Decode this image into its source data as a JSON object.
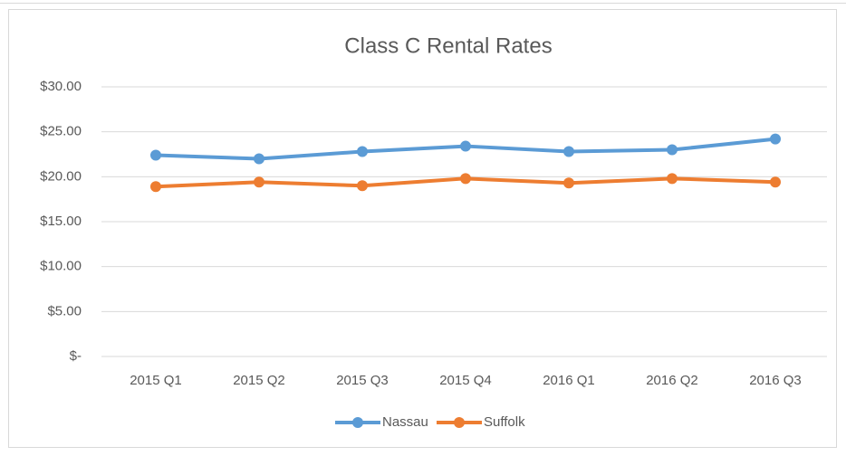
{
  "chart_data": {
    "type": "line",
    "title": "Class C Rental Rates",
    "categories": [
      "2015 Q1",
      "2015 Q2",
      "2015 Q3",
      "2015 Q4",
      "2016 Q1",
      "2016 Q2",
      "2016 Q3"
    ],
    "series": [
      {
        "name": "Nassau",
        "color": "#5b9bd5",
        "values": [
          22.4,
          22.0,
          22.8,
          23.4,
          22.8,
          23.0,
          24.2
        ]
      },
      {
        "name": "Suffolk",
        "color": "#ed7d31",
        "values": [
          18.9,
          19.4,
          19.0,
          19.8,
          19.3,
          19.8,
          19.4
        ]
      }
    ],
    "ylim": [
      0,
      30
    ],
    "yticks": [
      {
        "value": 0,
        "label": "$-"
      },
      {
        "value": 5,
        "label": "$5.00"
      },
      {
        "value": 10,
        "label": "$10.00"
      },
      {
        "value": 15,
        "label": "$15.00"
      },
      {
        "value": 20,
        "label": "$20.00"
      },
      {
        "value": 25,
        "label": "$25.00"
      },
      {
        "value": 30,
        "label": "$30.00"
      }
    ],
    "grid": true,
    "legend": "bottom"
  }
}
